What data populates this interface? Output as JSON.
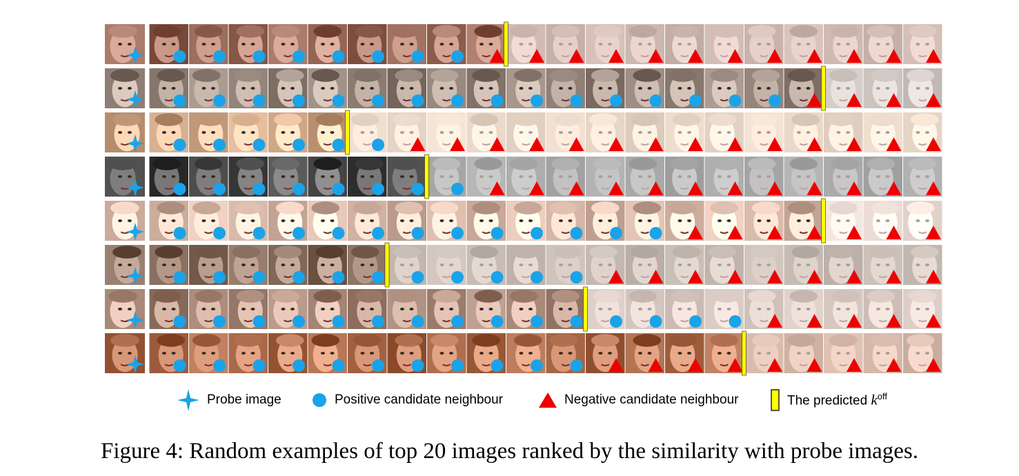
{
  "figure": {
    "rows": [
      {
        "row": 1,
        "probe_palette": "#a07060",
        "candidates": [
          "pos",
          "pos",
          "pos",
          "pos",
          "pos",
          "pos",
          "pos",
          "pos",
          "neg",
          "neg",
          "neg",
          "neg",
          "neg",
          "neg",
          "neg",
          "neg",
          "neg",
          "neg",
          "neg",
          "neg"
        ],
        "k_off": 9
      },
      {
        "row": 2,
        "probe_palette": "#9a8a80",
        "candidates": [
          "pos",
          "pos",
          "pos",
          "pos",
          "pos",
          "pos",
          "pos",
          "pos",
          "pos",
          "pos",
          "pos",
          "pos",
          "pos",
          "pos",
          "pos",
          "pos",
          "neg",
          "neg",
          "neg",
          "neg"
        ],
        "k_off": 17
      },
      {
        "row": 3,
        "probe_palette": "#d8b090",
        "candidates": [
          "pos",
          "pos",
          "pos",
          "pos",
          "pos",
          "pos",
          "neg",
          "neg",
          "neg",
          "neg",
          "neg",
          "neg",
          "neg",
          "neg",
          "neg",
          "neg",
          "neg",
          "neg",
          "neg",
          "neg"
        ],
        "k_off": 5
      },
      {
        "row": 4,
        "probe_palette": "#505050",
        "candidates": [
          "pos",
          "pos",
          "pos",
          "pos",
          "pos",
          "pos",
          "pos",
          "pos",
          "neg",
          "neg",
          "neg",
          "neg",
          "neg",
          "neg",
          "neg",
          "neg",
          "neg",
          "neg",
          "neg",
          "neg"
        ],
        "k_off": 7
      },
      {
        "row": 5,
        "probe_palette": "#e0c0b0",
        "candidates": [
          "pos",
          "pos",
          "pos",
          "pos",
          "pos",
          "pos",
          "pos",
          "pos",
          "pos",
          "pos",
          "pos",
          "pos",
          "pos",
          "neg",
          "neg",
          "neg",
          "neg",
          "neg",
          "neg",
          "neg"
        ],
        "k_off": 17
      },
      {
        "row": 6,
        "probe_palette": "#8a7060",
        "candidates": [
          "pos",
          "pos",
          "pos",
          "pos",
          "pos",
          "pos",
          "pos",
          "pos",
          "pos",
          "pos",
          "pos",
          "neg",
          "neg",
          "neg",
          "neg",
          "neg",
          "neg",
          "neg",
          "neg",
          "neg"
        ],
        "k_off": 6
      },
      {
        "row": 7,
        "probe_palette": "#b09080",
        "candidates": [
          "pos",
          "pos",
          "pos",
          "pos",
          "pos",
          "pos",
          "pos",
          "pos",
          "pos",
          "pos",
          "pos",
          "pos",
          "pos",
          "pos",
          "pos",
          "neg",
          "neg",
          "neg",
          "neg",
          "neg"
        ],
        "k_off": 11
      },
      {
        "row": 8,
        "probe_palette": "#b07050",
        "candidates": [
          "pos",
          "pos",
          "pos",
          "pos",
          "pos",
          "pos",
          "pos",
          "pos",
          "pos",
          "pos",
          "pos",
          "neg",
          "neg",
          "neg",
          "neg",
          "neg",
          "neg",
          "neg",
          "neg",
          "neg"
        ],
        "k_off": 15
      }
    ],
    "colors": {
      "positive": "#1aa3e8",
      "negative": "#ee0000",
      "probe_star": "#1aa3e8",
      "k_marker": "#ffff00",
      "k_marker_border": "#222222"
    }
  },
  "legend": {
    "probe": "Probe image",
    "positive": "Positive candidate neighbour",
    "negative": "Negative candidate neighbour",
    "predicted_prefix": "The predicted ",
    "predicted_k": "k",
    "predicted_sup": "off"
  },
  "caption": "Figure 4: Random examples of top 20 images ranked by the similarity with probe images."
}
